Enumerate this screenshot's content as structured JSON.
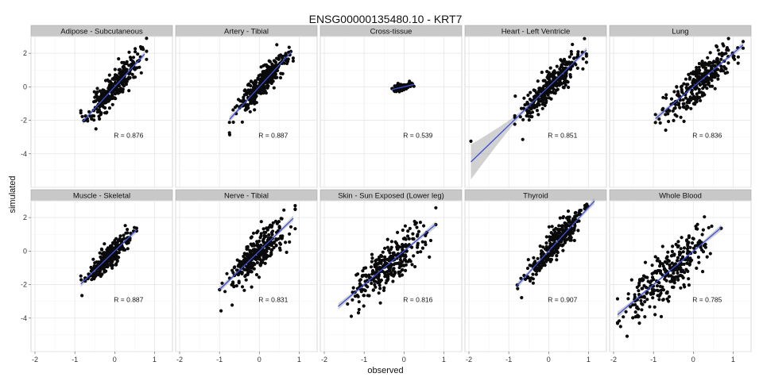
{
  "chart_data": {
    "type": "scatter",
    "title": "ENSG00000135480.10 - KRT7",
    "xlabel": "observed",
    "ylabel": "simulated",
    "xlim": [
      -2.1,
      1.45
    ],
    "ylim": [
      -6.0,
      3.0
    ],
    "x_ticks": [
      -2,
      -1,
      0,
      1
    ],
    "y_ticks": [
      -4,
      -2,
      0,
      2
    ],
    "grid": true,
    "legend": "none",
    "point_color": "#0a0a0a",
    "line_color": "#3b4fd9",
    "band_color": "#8c8c8c",
    "strip_color": "#c8c8c8",
    "layout": "facet grid, 2 rows x 5 columns",
    "panels": [
      {
        "name": "Adipose - Subcutaneous",
        "r_label": "R = 0.876",
        "r": 0.876,
        "x_range": [
          -0.85,
          0.8
        ],
        "slope": 2.6,
        "intercept": 0.0,
        "fit_range": [
          -0.8,
          0.75
        ],
        "n": 300,
        "seed": 11
      },
      {
        "name": "Artery - Tibial",
        "r_label": "R = 0.887",
        "r": 0.887,
        "x_range": [
          -0.75,
          0.85
        ],
        "slope": 2.6,
        "intercept": 0.0,
        "fit_range": [
          -0.75,
          0.8
        ],
        "n": 300,
        "seed": 23
      },
      {
        "name": "Cross-tissue",
        "r_label": "R = 0.539",
        "r": 0.539,
        "x_range": [
          -0.3,
          0.25
        ],
        "slope": 0.55,
        "intercept": 0.0,
        "fit_range": [
          -0.3,
          0.25
        ],
        "n": 120,
        "seed": 37
      },
      {
        "name": "Heart - Left Ventricle",
        "r_label": "R = 0.851",
        "r": 0.851,
        "x_range": [
          -0.85,
          0.95
        ],
        "slope": 2.3,
        "intercept": 0.0,
        "fit_range": [
          -1.95,
          0.95
        ],
        "n": 300,
        "seed": 41,
        "outliers": [
          [
            -1.95,
            -3.25
          ]
        ]
      },
      {
        "name": "Lung",
        "r_label": "R = 0.836",
        "r": 0.836,
        "x_range": [
          -0.95,
          1.25
        ],
        "slope": 2.0,
        "intercept": 0.0,
        "fit_range": [
          -0.95,
          1.25
        ],
        "n": 300,
        "seed": 53
      },
      {
        "name": "Muscle - Skeletal",
        "r_label": "R = 0.887",
        "r": 0.887,
        "x_range": [
          -0.85,
          0.55
        ],
        "slope": 2.3,
        "intercept": 0.0,
        "fit_range": [
          -0.85,
          0.55
        ],
        "n": 300,
        "seed": 67
      },
      {
        "name": "Nerve - Tibial",
        "r_label": "R = 0.831",
        "r": 0.831,
        "x_range": [
          -1.0,
          0.9
        ],
        "slope": 2.3,
        "intercept": 0.0,
        "fit_range": [
          -1.0,
          0.85
        ],
        "n": 300,
        "seed": 71
      },
      {
        "name": "Skin - Sun Exposed (Lower leg)",
        "r_label": "R = 0.816",
        "r": 0.816,
        "x_range": [
          -1.65,
          0.8
        ],
        "slope": 2.0,
        "intercept": 0.0,
        "fit_range": [
          -1.65,
          0.8
        ],
        "n": 300,
        "seed": 83
      },
      {
        "name": "Thyroid",
        "r_label": "R = 0.907",
        "r": 0.907,
        "x_range": [
          -0.8,
          1.15
        ],
        "slope": 2.6,
        "intercept": 0.0,
        "fit_range": [
          -0.8,
          1.15
        ],
        "n": 300,
        "seed": 97
      },
      {
        "name": "Whole Blood",
        "r_label": "R = 0.785",
        "r": 0.785,
        "x_range": [
          -1.9,
          0.7
        ],
        "slope": 2.0,
        "intercept": 0.0,
        "fit_range": [
          -1.9,
          0.7
        ],
        "n": 300,
        "seed": 101,
        "outliers": [
          [
            -1.9,
            -2.85
          ]
        ]
      }
    ]
  }
}
